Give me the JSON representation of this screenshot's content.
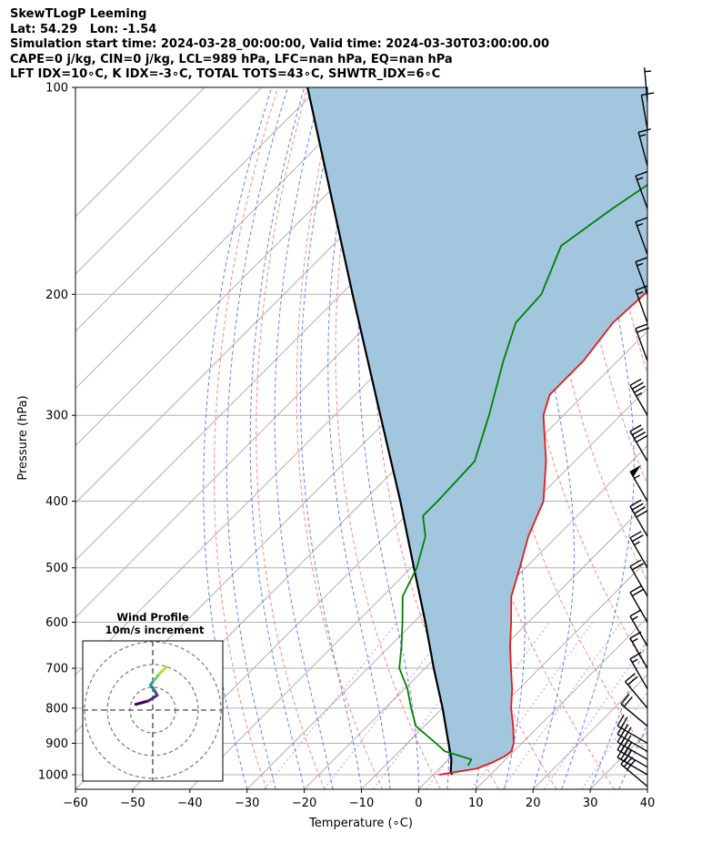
{
  "header": {
    "line1": "SkewTLogP Leeming",
    "line2": "Lat: 54.29   Lon: -1.54",
    "line3": "Simulation start time: 2024-03-28_00:00:00, Valid time: 2024-03-30T03:00:00.00",
    "line4": "CAPE=0 j/kg, CIN=0 j/kg, LCL=989 hPa, LFC=nan hPa, EQ=nan hPa",
    "line5": "LFT IDX=10∘C, K IDX=-3∘C, TOTAL TOTS=43∘C, SHWTR_IDX=6∘C"
  },
  "chart_data": [
    {
      "type": "line",
      "subtype": "skew-t log-p",
      "xlabel": "Temperature (∘C)",
      "ylabel": "Pressure (hPa)",
      "xlim": [
        -60,
        40
      ],
      "ylim": [
        1050,
        100
      ],
      "yscale": "log",
      "grid": true,
      "xticks": [
        "−60",
        "−50",
        "−40",
        "−30",
        "−20",
        "−10",
        "0",
        "10",
        "20",
        "30",
        "40"
      ],
      "yticks": [
        "100",
        "200",
        "300",
        "400",
        "500",
        "600",
        "700",
        "800",
        "900",
        "1000"
      ],
      "colors": {
        "temperature": "#e41a1c",
        "dewpoint": "#008000",
        "parcel": "#000000",
        "shade": "#a3c6df",
        "dry_adiabat": "#ff6666",
        "moist_adiabat": "#3355ff",
        "mixing_ratio": "#9955cc"
      },
      "series": [
        {
          "key": "temperature",
          "points": [
            [
              1000,
              1.0
            ],
            [
              980,
              6.5
            ],
            [
              960,
              8.2
            ],
            [
              940,
              9.3
            ],
            [
              925,
              9.6
            ],
            [
              900,
              8.6
            ],
            [
              850,
              5.5
            ],
            [
              800,
              2.0
            ],
            [
              750,
              -1.2
            ],
            [
              700,
              -5.0
            ],
            [
              650,
              -9.0
            ],
            [
              600,
              -13.0
            ],
            [
              550,
              -17.5
            ],
            [
              500,
              -21.0
            ],
            [
              450,
              -25.0
            ],
            [
              400,
              -28.5
            ],
            [
              350,
              -35.0
            ],
            [
              300,
              -43.5
            ],
            [
              280,
              -46.0
            ],
            [
              250,
              -46.0
            ],
            [
              220,
              -47.5
            ],
            [
              200,
              -47.0
            ],
            [
              180,
              -48.5
            ],
            [
              160,
              -48.0
            ],
            [
              150,
              -46.5
            ],
            [
              130,
              -44.0
            ],
            [
              110,
              -44.0
            ],
            [
              100,
              -45.0
            ]
          ]
        },
        {
          "key": "dewpoint",
          "points": [
            [
              970,
              4.5
            ],
            [
              950,
              4.0
            ],
            [
              925,
              -2.0
            ],
            [
              900,
              -5.0
            ],
            [
              850,
              -11.5
            ],
            [
              800,
              -15.5
            ],
            [
              750,
              -19.5
            ],
            [
              700,
              -24.5
            ],
            [
              650,
              -28.0
            ],
            [
              600,
              -32.0
            ],
            [
              550,
              -36.5
            ],
            [
              500,
              -39.0
            ],
            [
              450,
              -43.0
            ],
            [
              420,
              -47.0
            ],
            [
              400,
              -47.0
            ],
            [
              350,
              -47.5
            ],
            [
              300,
              -53.0
            ],
            [
              250,
              -60.0
            ],
            [
              220,
              -64.5
            ],
            [
              200,
              -65.0
            ],
            [
              170,
              -70.0
            ],
            [
              150,
              -67.5
            ],
            [
              120,
              -62.0
            ],
            [
              100,
              -56.5
            ]
          ]
        },
        {
          "key": "parcel",
          "points": [
            [
              1000,
              3.3
            ],
            [
              989,
              2.5
            ],
            [
              950,
              0.5
            ],
            [
              900,
              -2.8
            ],
            [
              850,
              -6.3
            ],
            [
              800,
              -10.0
            ],
            [
              700,
              -18.5
            ],
            [
              600,
              -28.0
            ],
            [
              500,
              -39.5
            ],
            [
              400,
              -53.5
            ],
            [
              300,
              -72.0
            ],
            [
              200,
              -98.0
            ],
            [
              100,
              -142.0
            ]
          ]
        }
      ],
      "wind_barbs": [
        {
          "p": 1040,
          "speed": 30,
          "dir": 310
        },
        {
          "p": 1000,
          "speed": 30,
          "dir": 300
        },
        {
          "p": 975,
          "speed": 35,
          "dir": 300
        },
        {
          "p": 950,
          "speed": 35,
          "dir": 300
        },
        {
          "p": 925,
          "speed": 30,
          "dir": 300
        },
        {
          "p": 900,
          "speed": 25,
          "dir": 300
        },
        {
          "p": 850,
          "speed": 20,
          "dir": 310
        },
        {
          "p": 800,
          "speed": 20,
          "dir": 320
        },
        {
          "p": 750,
          "speed": 15,
          "dir": 330
        },
        {
          "p": 700,
          "speed": 15,
          "dir": 330
        },
        {
          "p": 650,
          "speed": 15,
          "dir": 330
        },
        {
          "p": 600,
          "speed": 20,
          "dir": 330
        },
        {
          "p": 550,
          "speed": 20,
          "dir": 330
        },
        {
          "p": 500,
          "speed": 25,
          "dir": 330
        },
        {
          "p": 450,
          "speed": 40,
          "dir": 330
        },
        {
          "p": 400,
          "speed": 55,
          "dir": 330
        },
        {
          "p": 350,
          "speed": 40,
          "dir": 330
        },
        {
          "p": 300,
          "speed": 35,
          "dir": 330
        },
        {
          "p": 250,
          "speed": 20,
          "dir": 340
        },
        {
          "p": 220,
          "speed": 15,
          "dir": 340
        },
        {
          "p": 200,
          "speed": 15,
          "dir": 340
        },
        {
          "p": 175,
          "speed": 15,
          "dir": 340
        },
        {
          "p": 150,
          "speed": 15,
          "dir": 340
        },
        {
          "p": 130,
          "speed": 15,
          "dir": 345
        },
        {
          "p": 115,
          "speed": 10,
          "dir": 350
        },
        {
          "p": 105,
          "speed": 5,
          "dir": 355
        }
      ]
    },
    {
      "type": "line",
      "subtype": "hodograph",
      "title": "Wind Profile",
      "subtitle": "10m/s increment",
      "points": [
        [
          -7.5,
          2.5
        ],
        [
          -2,
          4
        ],
        [
          2,
          6.5
        ],
        [
          0.5,
          9
        ],
        [
          -1,
          11
        ],
        [
          0.5,
          13
        ],
        [
          3,
          16
        ],
        [
          6,
          19
        ]
      ]
    }
  ]
}
